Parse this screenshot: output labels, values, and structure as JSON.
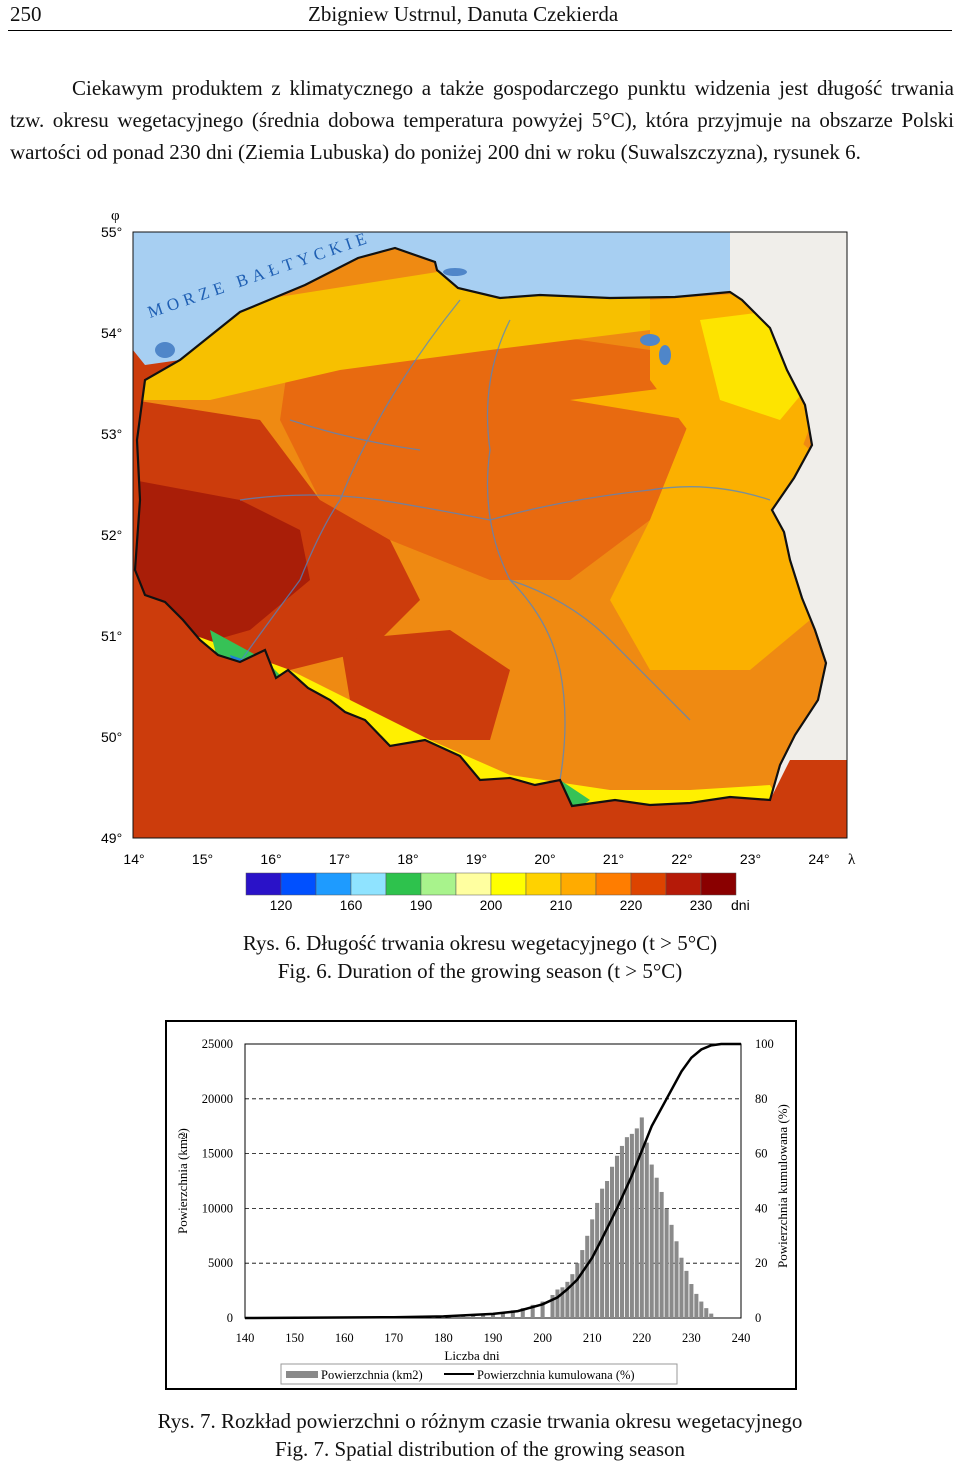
{
  "header": {
    "page_number": "250",
    "authors": "Zbigniew Ustrnul, Danuta Czekierda"
  },
  "body_text": "Ciekawym produktem z klimatycznego a także gospodarczego punktu widzenia jest długość trwania tzw. okresu wegetacyjnego (średnia dobowa temperatura powyżej 5°C), która przyjmuje na obszarze Polski wartości od ponad 230 dni (Ziemia Lubuska) do poniżej 200 dni w roku (Suwalszczyzna), rysunek 6.",
  "map": {
    "phi_symbol": "φ",
    "lambda_symbol": "λ",
    "sea_label": "MORZE BAŁTYCKIE",
    "lat_labels": [
      "55°",
      "54°",
      "53°",
      "52°",
      "51°",
      "50°",
      "49°"
    ],
    "lon_labels": [
      "14°",
      "15°",
      "16°",
      "17°",
      "18°",
      "19°",
      "20°",
      "21°",
      "22°",
      "23°",
      "24°"
    ],
    "legend_colors": [
      "#2a12c8",
      "#0050ff",
      "#1e9bff",
      "#8fe3ff",
      "#2ec24d",
      "#a8f38c",
      "#ffffa0",
      "#ffff00",
      "#ffd200",
      "#ffab00",
      "#ff7d00",
      "#dd4400",
      "#b51a08",
      "#8a0000"
    ],
    "legend_values": [
      "120",
      "160",
      "190",
      "200",
      "210",
      "220",
      "230"
    ],
    "legend_unit": "dni",
    "palette": {
      "sea": "#a7cff2",
      "outside": "#f0eeea",
      "coast": "#f7c000",
      "north": "#ef8a12",
      "center": "#e86a10",
      "west": "#cc3c0c",
      "southwest": "#a91e08",
      "east": "#fbb000",
      "northeast": "#fde400",
      "mountain_mid": "#fff000",
      "mountain_high": "#36c256",
      "mountain_top": "#1f7fd8",
      "border": "#111111",
      "river": "#4f86c9"
    }
  },
  "fig6_caption": {
    "pl": "Rys. 6. Długość trwania okresu wegetacyjnego (t > 5°C)",
    "en": "Fig. 6. Duration of the growing season (t > 5°C)"
  },
  "chart_data": {
    "type": "bar",
    "xlabel": "Liczba dni",
    "ylabel": "Powierzchnia (km2)",
    "ylabel_superscript": "2",
    "y2label": "Powierzchnia kumulowana (%)",
    "xlim": [
      140,
      240
    ],
    "ylim": [
      0,
      25000
    ],
    "y2lim": [
      0,
      100
    ],
    "xticks": [
      "140",
      "150",
      "160",
      "170",
      "180",
      "190",
      "200",
      "210",
      "220",
      "230",
      "240"
    ],
    "yticks": [
      "0",
      "5000",
      "10000",
      "15000",
      "20000",
      "25000"
    ],
    "y2ticks": [
      "0",
      "20",
      "40",
      "60",
      "80",
      "100"
    ],
    "grid": "dashed horizontal",
    "legend_position": "bottom",
    "legend": [
      "Powierzchnia (km2)",
      "Powierzchnia kumulowana (%)"
    ],
    "colors": {
      "bars": "#8a8a8a",
      "line": "#000000"
    },
    "series": [
      {
        "name": "Powierzchnia (km2)",
        "kind": "bar",
        "x": [
          172,
          174,
          176,
          178,
          180,
          182,
          184,
          186,
          188,
          190,
          192,
          194,
          196,
          198,
          200,
          202,
          203,
          204,
          205,
          206,
          207,
          208,
          209,
          210,
          211,
          212,
          213,
          214,
          215,
          216,
          217,
          218,
          219,
          220,
          221,
          222,
          223,
          224,
          225,
          226,
          227,
          228,
          229,
          230,
          231,
          232,
          233,
          234
        ],
        "values": [
          50,
          60,
          80,
          100,
          100,
          150,
          200,
          250,
          300,
          400,
          500,
          700,
          900,
          1200,
          1500,
          2100,
          2600,
          2800,
          3300,
          4000,
          5000,
          6200,
          7500,
          9000,
          10500,
          11800,
          12500,
          13800,
          14800,
          15700,
          16500,
          16800,
          17300,
          18300,
          16000,
          14000,
          12800,
          11500,
          10000,
          8500,
          7000,
          5500,
          4300,
          3100,
          2200,
          1500,
          900,
          400
        ]
      },
      {
        "name": "Powierzchnia kumulowana (%)",
        "kind": "line",
        "x": [
          140,
          170,
          180,
          190,
          195,
          200,
          203,
          205,
          207,
          210,
          212,
          215,
          218,
          220,
          222,
          225,
          228,
          230,
          232,
          234,
          236,
          240
        ],
        "values": [
          0,
          0.3,
          0.6,
          1.5,
          2.5,
          5,
          7.5,
          10.5,
          14,
          22,
          29,
          40,
          52,
          61,
          70,
          80,
          90,
          95,
          98,
          99.5,
          100,
          100
        ]
      }
    ]
  },
  "fig7_caption": {
    "pl": "Rys. 7. Rozkład powierzchni o różnym czasie trwania okresu wegetacyjnego",
    "en": "Fig. 7. Spatial distribution of the growing season"
  }
}
